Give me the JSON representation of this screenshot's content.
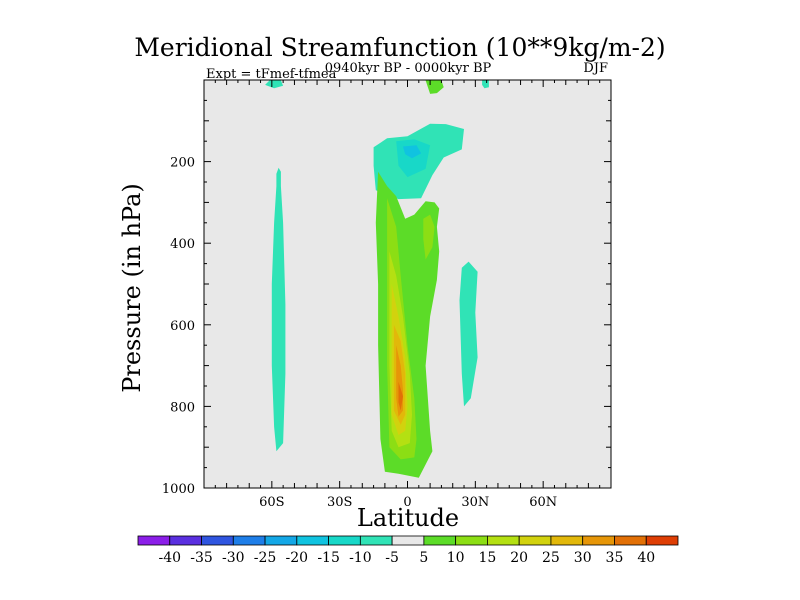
{
  "chart_data": {
    "type": "contour",
    "title": "Meridional Streamfunction (10**9kg/m-2)",
    "subtitle": "0940kyr BP - 0000kyr BP",
    "left_string": "Expt = tFmef-tfmea",
    "right_string": "DJF",
    "xlabel": "Latitude",
    "ylabel": "Pressure (in hPa)",
    "xlim": [
      -90,
      90
    ],
    "ylim": [
      1000,
      0
    ],
    "x_ticks": [
      {
        "value": -60,
        "label": "60S"
      },
      {
        "value": -30,
        "label": "30S"
      },
      {
        "value": 0,
        "label": "0"
      },
      {
        "value": 30,
        "label": "30N"
      },
      {
        "value": 60,
        "label": "60N"
      }
    ],
    "y_ticks": [
      {
        "value": 200,
        "label": "200"
      },
      {
        "value": 400,
        "label": "400"
      },
      {
        "value": 600,
        "label": "600"
      },
      {
        "value": 800,
        "label": "800"
      },
      {
        "value": 1000,
        "label": "1000"
      }
    ],
    "background_color": "#e8e8e8",
    "colorbar": {
      "levels": [
        -40,
        -35,
        -30,
        -25,
        -20,
        -15,
        -10,
        -5,
        5,
        10,
        15,
        20,
        25,
        30,
        35,
        40
      ],
      "labels": [
        "-40",
        "-35",
        "-30",
        "-25",
        "-20",
        "-15",
        "-10",
        "-5",
        "5",
        "10",
        "15",
        "20",
        "25",
        "30",
        "35",
        "40"
      ],
      "colors": [
        "#8b1ee8",
        "#5a2fe0",
        "#2f55e0",
        "#1e7ee8",
        "#13a7e6",
        "#10c3e0",
        "#18d8c8",
        "#30e3b6",
        "#e8e8e8",
        "#5cdc28",
        "#8cde14",
        "#b4e012",
        "#d2d20e",
        "#e2b80a",
        "#e69608",
        "#e27006",
        "#de3e04"
      ]
    },
    "regions": [
      {
        "name": "positive-lobe-north-high",
        "points": [
          [
            8,
            1
          ],
          [
            15,
            1
          ],
          [
            16,
            18
          ],
          [
            13,
            32
          ],
          [
            10,
            34
          ]
        ],
        "color": "#5cdc28"
      },
      {
        "name": "negative-lobe-south-high",
        "points": [
          [
            -56,
            1
          ],
          [
            -61,
            1
          ],
          [
            -63,
            12
          ],
          [
            -59,
            20
          ],
          [
            -55,
            14
          ]
        ],
        "color": "#30e3b6"
      },
      {
        "name": "negative-lobe-north-high",
        "points": [
          [
            33,
            1
          ],
          [
            36,
            1
          ],
          [
            36,
            18
          ],
          [
            34,
            20
          ],
          [
            33,
            12
          ]
        ],
        "color": "#30e3b6"
      },
      {
        "name": "negative-cell-upper-outer",
        "points": [
          [
            -15,
            165
          ],
          [
            -9,
            143
          ],
          [
            0,
            138
          ],
          [
            10,
            107
          ],
          [
            17,
            108
          ],
          [
            25,
            120
          ],
          [
            24,
            170
          ],
          [
            16,
            190
          ],
          [
            11,
            233
          ],
          [
            6,
            290
          ],
          [
            -4,
            292
          ],
          [
            -14,
            270
          ],
          [
            -15,
            210
          ]
        ],
        "color": "#30e3b6"
      },
      {
        "name": "negative-cell-upper-inner",
        "points": [
          [
            -5,
            150
          ],
          [
            3,
            145
          ],
          [
            10,
            160
          ],
          [
            8,
            218
          ],
          [
            0,
            238
          ],
          [
            -4,
            210
          ]
        ],
        "color": "#18d8c8"
      },
      {
        "name": "negative-cell-upper-core",
        "points": [
          [
            -2,
            163
          ],
          [
            4,
            160
          ],
          [
            6,
            180
          ],
          [
            2,
            192
          ],
          [
            -1,
            182
          ]
        ],
        "color": "#10c3e0"
      },
      {
        "name": "negative-band-south",
        "points": [
          [
            -57,
            215
          ],
          [
            -58,
            230
          ],
          [
            -58,
            260
          ],
          [
            -59,
            350
          ],
          [
            -60,
            500
          ],
          [
            -60,
            700
          ],
          [
            -59,
            850
          ],
          [
            -58,
            910
          ],
          [
            -55,
            890
          ],
          [
            -54,
            720
          ],
          [
            -54,
            550
          ],
          [
            -55,
            350
          ],
          [
            -56,
            260
          ],
          [
            -56,
            225
          ]
        ],
        "color": "#30e3b6"
      },
      {
        "name": "negative-band-north",
        "points": [
          [
            23,
            540
          ],
          [
            24,
            460
          ],
          [
            27,
            445
          ],
          [
            31,
            470
          ],
          [
            30,
            570
          ],
          [
            31,
            680
          ],
          [
            28,
            780
          ],
          [
            25,
            800
          ],
          [
            24,
            720
          ]
        ],
        "color": "#30e3b6"
      },
      {
        "name": "positive-cell-outer",
        "points": [
          [
            -13,
            225
          ],
          [
            -9,
            260
          ],
          [
            -5,
            285
          ],
          [
            -1,
            340
          ],
          [
            3,
            330
          ],
          [
            8,
            297
          ],
          [
            12,
            300
          ],
          [
            14,
            315
          ],
          [
            13,
            360
          ],
          [
            14,
            420
          ],
          [
            13,
            490
          ],
          [
            10,
            580
          ],
          [
            8,
            700
          ],
          [
            10,
            860
          ],
          [
            11,
            910
          ],
          [
            5,
            975
          ],
          [
            -4,
            965
          ],
          [
            -10,
            960
          ],
          [
            -12,
            880
          ],
          [
            -13,
            650
          ],
          [
            -13,
            500
          ],
          [
            -14,
            350
          ]
        ],
        "color": "#5cdc28"
      },
      {
        "name": "positive-cell-15",
        "points": [
          [
            -9,
            290
          ],
          [
            -5,
            360
          ],
          [
            -3,
            480
          ],
          [
            0,
            650
          ],
          [
            3,
            780
          ],
          [
            4,
            880
          ],
          [
            3,
            925
          ],
          [
            -3,
            930
          ],
          [
            -8,
            900
          ],
          [
            -9,
            700
          ],
          [
            -9,
            550
          ],
          [
            -9,
            400
          ]
        ],
        "color": "#8cde14"
      },
      {
        "name": "positive-cell-north-lobe",
        "points": [
          [
            7,
            340
          ],
          [
            10,
            330
          ],
          [
            12,
            360
          ],
          [
            11,
            410
          ],
          [
            8,
            440
          ],
          [
            7,
            390
          ]
        ],
        "color": "#8cde14"
      },
      {
        "name": "positive-cell-20",
        "points": [
          [
            -8,
            420
          ],
          [
            -5,
            480
          ],
          [
            -2,
            580
          ],
          [
            1,
            720
          ],
          [
            2,
            820
          ],
          [
            1,
            890
          ],
          [
            -4,
            900
          ],
          [
            -7,
            860
          ],
          [
            -8,
            700
          ],
          [
            -8,
            520
          ]
        ],
        "color": "#b4e012"
      },
      {
        "name": "positive-cell-25",
        "points": [
          [
            -7,
            500
          ],
          [
            -4,
            580
          ],
          [
            -1,
            680
          ],
          [
            0,
            800
          ],
          [
            -1,
            860
          ],
          [
            -4,
            870
          ],
          [
            -7,
            820
          ],
          [
            -7,
            680
          ],
          [
            -7,
            560
          ]
        ],
        "color": "#d2d20e"
      },
      {
        "name": "positive-cell-30",
        "points": [
          [
            -6,
            600
          ],
          [
            -3,
            640
          ],
          [
            -1,
            720
          ],
          [
            -1,
            820
          ],
          [
            -3,
            845
          ],
          [
            -6,
            810
          ],
          [
            -6,
            700
          ]
        ],
        "color": "#e2b80a"
      },
      {
        "name": "positive-cell-35",
        "points": [
          [
            -5,
            650
          ],
          [
            -3,
            700
          ],
          [
            -2,
            760
          ],
          [
            -2,
            810
          ],
          [
            -4,
            825
          ],
          [
            -5,
            780
          ]
        ],
        "color": "#e69608"
      },
      {
        "name": "positive-cell-40",
        "points": [
          [
            -4,
            740
          ],
          [
            -2,
            775
          ],
          [
            -3,
            810
          ],
          [
            -4,
            790
          ]
        ],
        "color": "#e27006"
      }
    ]
  }
}
